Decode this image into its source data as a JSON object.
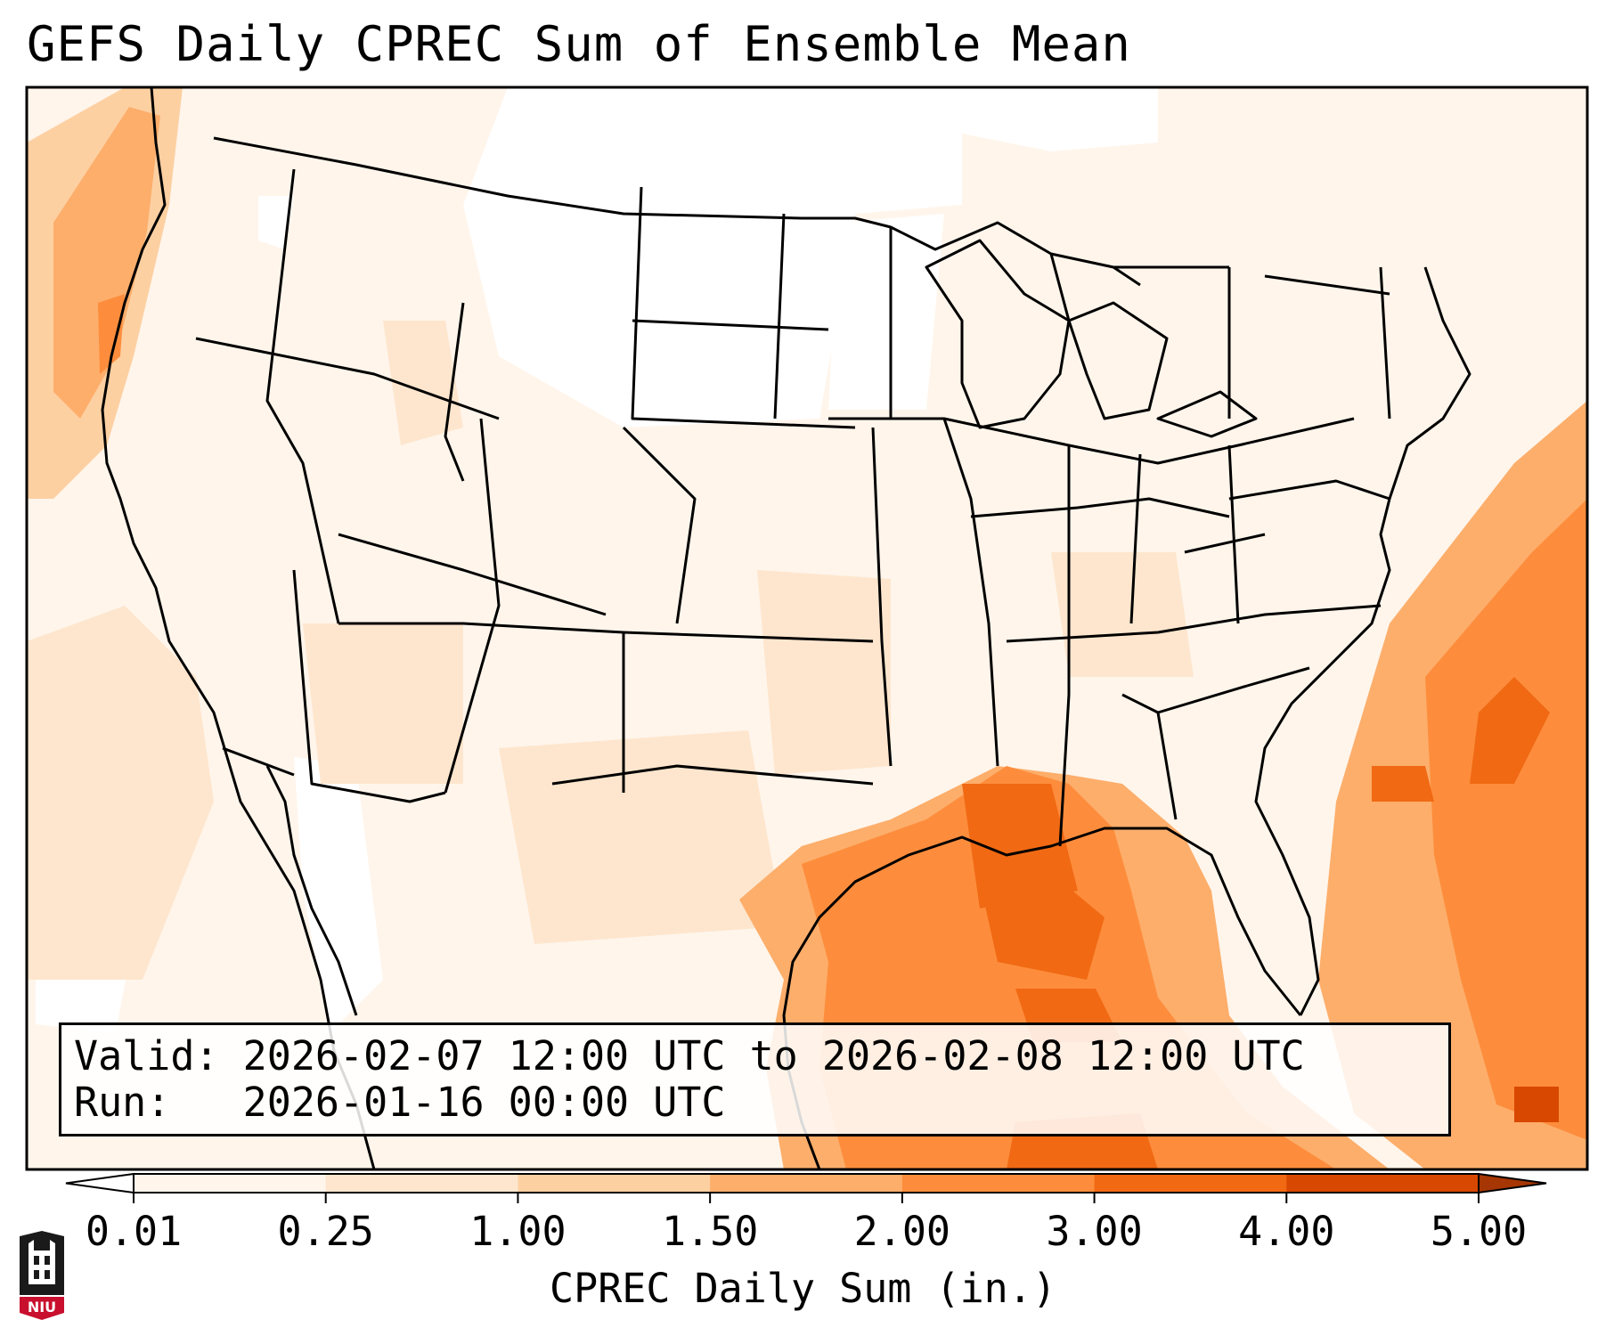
{
  "title": "GEFS Daily CPREC Sum of Ensemble Mean",
  "info": {
    "valid": "Valid: 2026-02-07 12:00 UTC to 2026-02-08 12:00 UTC",
    "run": "Run:   2026-01-16 00:00 UTC"
  },
  "colorbar": {
    "label": "CPREC Daily Sum (in.)",
    "ticks": [
      "0.01",
      "0.25",
      "1.00",
      "1.50",
      "2.00",
      "3.00",
      "4.00",
      "5.00"
    ],
    "colors": [
      "#fff5eb",
      "#fee6ce",
      "#fdd0a2",
      "#fdae6b",
      "#fd8d3c",
      "#f16913",
      "#d94801"
    ],
    "over_color": "#a63603",
    "under_color": "#ffffff",
    "extend": "both"
  },
  "map": {
    "projection": "Lambert conformal, CONUS",
    "field": "CPREC daily sum, ensemble mean",
    "features": [
      "coastlines",
      "country borders",
      "US state borders",
      "Great Lakes"
    ]
  },
  "logo": {
    "text": "NIU",
    "color": "#c8102e"
  }
}
